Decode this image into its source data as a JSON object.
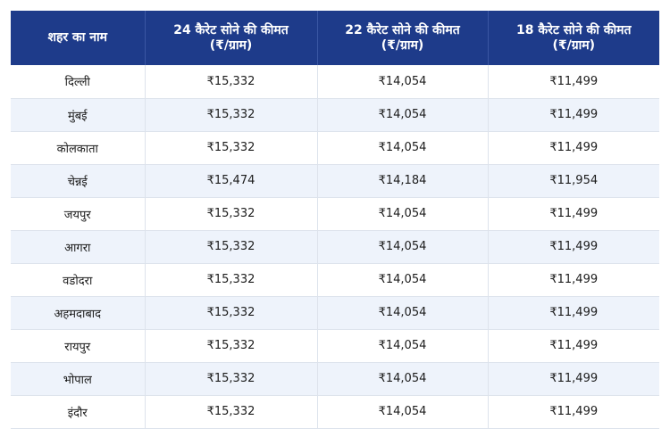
{
  "table": {
    "headers": [
      {
        "line1": "शहर का नाम",
        "line2": ""
      },
      {
        "line1": "24 कैरेट सोने की कीमत",
        "line2": "(₹/ग्राम)"
      },
      {
        "line1": "22 कैरेट सोने की कीमत",
        "line2": "(₹/ग्राम)"
      },
      {
        "line1": "18 कैरेट सोने की कीमत",
        "line2": "(₹/ग्राम)"
      }
    ],
    "rows": [
      [
        "दिल्ली",
        "₹15,332",
        "₹14,054",
        "₹11,499"
      ],
      [
        "मुंबई",
        "₹15,332",
        "₹14,054",
        "₹11,499"
      ],
      [
        "कोलकाता",
        "₹15,332",
        "₹14,054",
        "₹11,499"
      ],
      [
        "चेन्नई",
        "₹15,474",
        "₹14,184",
        "₹11,954"
      ],
      [
        "जयपुर",
        "₹15,332",
        "₹14,054",
        "₹11,499"
      ],
      [
        "आगरा",
        "₹15,332",
        "₹14,054",
        "₹11,499"
      ],
      [
        "वडोदरा",
        "₹15,332",
        "₹14,054",
        "₹11,499"
      ],
      [
        "अहमदाबाद",
        "₹15,332",
        "₹14,054",
        "₹11,499"
      ],
      [
        "रायपुर",
        "₹15,332",
        "₹14,054",
        "₹11,499"
      ],
      [
        "भोपाल",
        "₹15,332",
        "₹14,054",
        "₹11,499"
      ],
      [
        "इंदौर",
        "₹15,332",
        "₹14,054",
        "₹11,499"
      ]
    ]
  },
  "colors": {
    "header_bg": "#1e3b8a",
    "alt_row_bg": "#eef3fb"
  }
}
